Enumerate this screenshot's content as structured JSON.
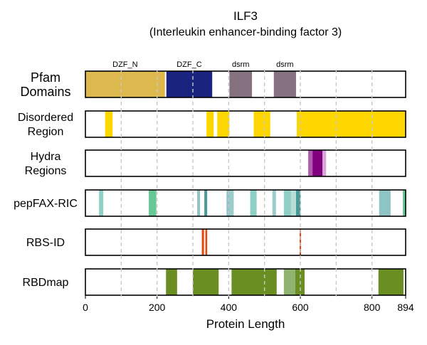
{
  "chart_data": {
    "type": "bar",
    "title": "ILF3",
    "subtitle": "(Interleukin enhancer-binding factor 3)",
    "xlabel": "Protein Length",
    "xlim": [
      0,
      894
    ],
    "xticks": [
      0,
      200,
      400,
      600,
      800,
      894
    ],
    "grid": "vertical dashed every 100",
    "tracks": [
      {
        "label_lines": [
          "Pfam",
          "Domains"
        ],
        "segments": [
          {
            "start": 0,
            "end": 222,
            "color": "#DDB84E",
            "label": "DZF_N"
          },
          {
            "start": 226,
            "end": 354,
            "color": "#1A237E",
            "label": "DZF_C"
          },
          {
            "start": 402,
            "end": 465,
            "color": "#85717F",
            "label": "dsrm"
          },
          {
            "start": 526,
            "end": 588,
            "color": "#85717F",
            "label": "dsrm"
          }
        ]
      },
      {
        "label_lines": [
          "Disordered",
          "Region"
        ],
        "segments": [
          {
            "start": 55,
            "end": 76,
            "color": "#FFD700"
          },
          {
            "start": 338,
            "end": 358,
            "color": "#FFD700"
          },
          {
            "start": 368,
            "end": 402,
            "color": "#FFD700"
          },
          {
            "start": 470,
            "end": 516,
            "color": "#FFD700"
          },
          {
            "start": 590,
            "end": 894,
            "color": "#FFD700"
          }
        ]
      },
      {
        "label_lines": [
          "Hydra",
          "Regions"
        ],
        "segments": [
          {
            "start": 622,
            "end": 634,
            "color": "#B05AB0"
          },
          {
            "start": 634,
            "end": 662,
            "color": "#800080"
          },
          {
            "start": 662,
            "end": 672,
            "color": "#D9A6D9"
          }
        ]
      },
      {
        "label_lines": [
          "pepFAX-RIC"
        ],
        "segments": [
          {
            "start": 38,
            "end": 50,
            "color": "#8FD0C6"
          },
          {
            "start": 177,
            "end": 198,
            "color": "#66C995"
          },
          {
            "start": 312,
            "end": 320,
            "color": "#8FC4C4"
          },
          {
            "start": 332,
            "end": 340,
            "color": "#4A9A9A"
          },
          {
            "start": 394,
            "end": 404,
            "color": "#8FC4C4"
          },
          {
            "start": 404,
            "end": 414,
            "color": "#9BCBCB"
          },
          {
            "start": 460,
            "end": 478,
            "color": "#8FD0C6"
          },
          {
            "start": 522,
            "end": 532,
            "color": "#9BCBCB"
          },
          {
            "start": 554,
            "end": 574,
            "color": "#8FD0C6"
          },
          {
            "start": 574,
            "end": 588,
            "color": "#B7DFD7"
          },
          {
            "start": 588,
            "end": 601,
            "color": "#4A9A9A"
          },
          {
            "start": 820,
            "end": 852,
            "color": "#8FC4C4"
          },
          {
            "start": 886,
            "end": 894,
            "color": "#66C995"
          }
        ]
      },
      {
        "label_lines": [
          "RBS-ID"
        ],
        "segments": [
          {
            "start": 325,
            "end": 331,
            "color": "#E8450A"
          },
          {
            "start": 335,
            "end": 340,
            "color": "#E8450A"
          },
          {
            "start": 598,
            "end": 602,
            "color": "#E8450A"
          }
        ]
      },
      {
        "label_lines": [
          "RBDmap"
        ],
        "segments": [
          {
            "start": 225,
            "end": 256,
            "color": "#6B8E23"
          },
          {
            "start": 300,
            "end": 372,
            "color": "#6B8E23"
          },
          {
            "start": 408,
            "end": 534,
            "color": "#6B8E23"
          },
          {
            "start": 554,
            "end": 586,
            "color": "#8FB46F"
          },
          {
            "start": 586,
            "end": 612,
            "color": "#6B8E23"
          },
          {
            "start": 818,
            "end": 888,
            "color": "#6B8E23"
          }
        ]
      }
    ]
  }
}
